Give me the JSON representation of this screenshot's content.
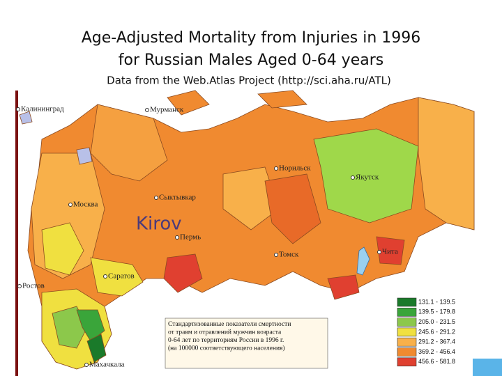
{
  "header": {
    "title_lines": [
      "Age-Adjusted Mortality from Injuries in 1996",
      "for Russian Males Aged 0-64 years"
    ],
    "subtitle": "Data from the Web.Atlas Project (http://sci.aha.ru/ATL)"
  },
  "map": {
    "cities": [
      "Калининград",
      "Мурманск",
      "Норильск",
      "Якутск",
      "Сыктывкар",
      "Москва",
      "Пермь",
      "Томск",
      "Чита",
      "Саратов",
      "Ростов",
      "Махачкала"
    ],
    "highlight": "Kirov",
    "legend": {
      "ranges": [
        "131.1 - 139.5",
        "139.5 - 179.8",
        "205.0 - 231.5",
        "245.6 - 291.2",
        "291.2 - 367.4",
        "369.2 - 456.4",
        "456.6 - 581.8"
      ],
      "caption_lines": [
        "Стандартизованные показатели смертности",
        "от травм и отравлений мужчин возраста",
        "0-64 лет по территориям России в 1996 г.",
        "(на 100000 соответствующего населения)"
      ]
    }
  }
}
